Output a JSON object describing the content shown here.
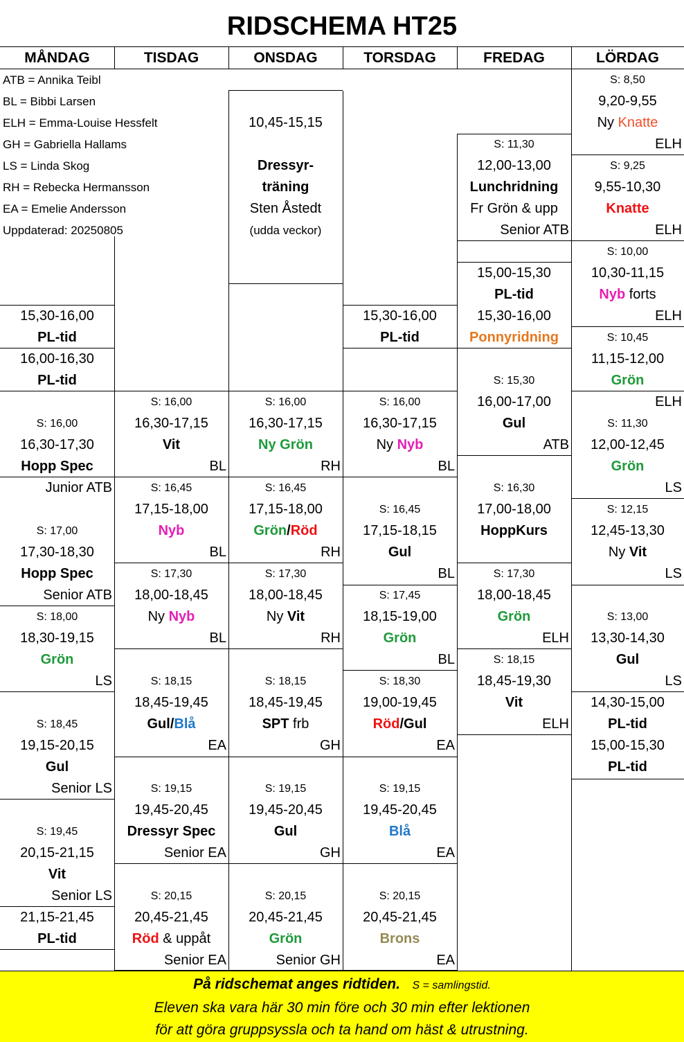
{
  "title": "RIDSCHEMA HT25",
  "days": [
    "MÅNDAG",
    "TISDAG",
    "ONSDAG",
    "TORSDAG",
    "FREDAG",
    "LÖRDAG"
  ],
  "legend": [
    "ATB = Annika Teibl",
    "BL = Bibbi Larsen",
    "ELH = Emma-Louise Hessfelt",
    "GH = Gabriella Hallams",
    "LS = Linda Skog",
    "RH = Rebecka Hermansson",
    "EA = Emelie Andersson",
    "Uppdaterad: 20250805"
  ],
  "colors": {
    "gron": "#1e9a3a",
    "nyb": "#e61eb4",
    "rod": "#ee1111",
    "bla": "#1f78c8",
    "orange": "#e6781e",
    "knatte": "#f0502a",
    "brons": "#948a54",
    "footer_bg": "#ffff00"
  },
  "cells": [
    {
      "col": 5,
      "row": 0,
      "t": "S: 8,50",
      "k": "s"
    },
    {
      "col": 5,
      "row": 1,
      "t": "9,20-9,55"
    },
    {
      "col": 5,
      "row": 2,
      "parts": [
        [
          "Ny ",
          ""
        ],
        [
          "Knatte",
          "knatte"
        ]
      ]
    },
    {
      "col": 5,
      "row": 3,
      "t": "ELH",
      "a": "r"
    },
    {
      "col": 5,
      "row": 4,
      "t": "S: 9,25",
      "k": "s"
    },
    {
      "col": 5,
      "row": 5,
      "t": "9,55-10,30"
    },
    {
      "col": 5,
      "row": 6,
      "parts": [
        [
          "Knatte",
          "rod"
        ]
      ],
      "b": 1
    },
    {
      "col": 5,
      "row": 7,
      "t": "ELH",
      "a": "r"
    },
    {
      "col": 5,
      "row": 8,
      "t": "S: 10,00",
      "k": "s"
    },
    {
      "col": 5,
      "row": 9,
      "t": "10,30-11,15"
    },
    {
      "col": 5,
      "row": 10,
      "parts": [
        [
          "Nyb",
          "nyb"
        ],
        [
          " forts",
          ""
        ]
      ],
      "pb": [
        1,
        0
      ]
    },
    {
      "col": 5,
      "row": 11,
      "t": "ELH",
      "a": "r"
    },
    {
      "col": 5,
      "row": 12,
      "t": "S: 10,45",
      "k": "s"
    },
    {
      "col": 5,
      "row": 13,
      "t": "11,15-12,00"
    },
    {
      "col": 5,
      "row": 14,
      "parts": [
        [
          "Grön",
          "gron"
        ]
      ],
      "b": 1
    },
    {
      "col": 5,
      "row": 15,
      "t": "ELH",
      "a": "r"
    },
    {
      "col": 5,
      "row": 16,
      "t": "S: 11,30",
      "k": "s"
    },
    {
      "col": 5,
      "row": 17,
      "t": "12,00-12,45"
    },
    {
      "col": 5,
      "row": 18,
      "parts": [
        [
          "Grön",
          "gron"
        ]
      ],
      "b": 1
    },
    {
      "col": 5,
      "row": 19,
      "t": "LS",
      "a": "r"
    },
    {
      "col": 5,
      "row": 20,
      "t": "S: 12,15",
      "k": "s"
    },
    {
      "col": 5,
      "row": 21,
      "t": "12,45-13,30"
    },
    {
      "col": 5,
      "row": 22,
      "parts": [
        [
          "Ny ",
          ""
        ],
        [
          "Vit",
          ""
        ]
      ],
      "pb": [
        0,
        1
      ]
    },
    {
      "col": 5,
      "row": 23,
      "t": "LS",
      "a": "r"
    },
    {
      "col": 5,
      "row": 25,
      "t": "S: 13,00",
      "k": "s"
    },
    {
      "col": 5,
      "row": 26,
      "t": "13,30-14,30"
    },
    {
      "col": 5,
      "row": 27,
      "t": "Gul",
      "b": 1
    },
    {
      "col": 5,
      "row": 28,
      "t": "LS",
      "a": "r"
    },
    {
      "col": 5,
      "row": 29,
      "t": "14,30-15,00"
    },
    {
      "col": 5,
      "row": 30,
      "t": "PL-tid",
      "b": 1
    },
    {
      "col": 5,
      "row": 31,
      "t": "15,00-15,30"
    },
    {
      "col": 5,
      "row": 32,
      "t": "PL-tid",
      "b": 1
    },
    {
      "col": 2,
      "row": 2,
      "t": "10,45-15,15"
    },
    {
      "col": 2,
      "row": 4,
      "t": "Dressyr-",
      "b": 1
    },
    {
      "col": 2,
      "row": 5,
      "t": "träning",
      "b": 1
    },
    {
      "col": 2,
      "row": 6,
      "t": "Sten Åstedt"
    },
    {
      "col": 2,
      "row": 7,
      "t": "(udda veckor)",
      "k": "lg"
    },
    {
      "col": 4,
      "row": 3,
      "t": "S: 11,30",
      "k": "s"
    },
    {
      "col": 4,
      "row": 4,
      "t": "12,00-13,00"
    },
    {
      "col": 4,
      "row": 5,
      "t": "Lunchridning",
      "b": 1
    },
    {
      "col": 4,
      "row": 6,
      "t": "Fr Grön & upp"
    },
    {
      "col": 4,
      "row": 7,
      "t": "Senior  ATB",
      "a": "r"
    },
    {
      "col": 4,
      "row": 9,
      "t": "15,00-15,30"
    },
    {
      "col": 4,
      "row": 10,
      "t": "PL-tid",
      "b": 1
    },
    {
      "col": 4,
      "row": 11,
      "t": "15,30-16,00"
    },
    {
      "col": 4,
      "row": 12,
      "parts": [
        [
          "Ponnyridning",
          "orange"
        ]
      ],
      "b": 1
    },
    {
      "col": 4,
      "row": 14,
      "t": "S: 15,30",
      "k": "s"
    },
    {
      "col": 4,
      "row": 15,
      "t": "16,00-17,00"
    },
    {
      "col": 4,
      "row": 16,
      "t": "Gul",
      "b": 1
    },
    {
      "col": 4,
      "row": 17,
      "t": "ATB",
      "a": "r"
    },
    {
      "col": 4,
      "row": 19,
      "t": "S: 16,30",
      "k": "s"
    },
    {
      "col": 4,
      "row": 20,
      "t": "17,00-18,00"
    },
    {
      "col": 4,
      "row": 21,
      "t": "HoppKurs",
      "b": 1
    },
    {
      "col": 4,
      "row": 23,
      "t": "S: 17,30",
      "k": "s"
    },
    {
      "col": 4,
      "row": 24,
      "t": "18,00-18,45"
    },
    {
      "col": 4,
      "row": 25,
      "parts": [
        [
          "Grön",
          "gron"
        ]
      ],
      "b": 1
    },
    {
      "col": 4,
      "row": 26,
      "t": "ELH",
      "a": "r"
    },
    {
      "col": 4,
      "row": 27,
      "t": "S: 18,15",
      "k": "s"
    },
    {
      "col": 4,
      "row": 28,
      "t": "18,45-19,30"
    },
    {
      "col": 4,
      "row": 29,
      "t": "Vit",
      "b": 1
    },
    {
      "col": 4,
      "row": 30,
      "t": "ELH",
      "a": "r"
    },
    {
      "col": 0,
      "row": 11,
      "t": "15,30-16,00"
    },
    {
      "col": 0,
      "row": 12,
      "t": "PL-tid",
      "b": 1
    },
    {
      "col": 0,
      "row": 13,
      "t": "16,00-16,30"
    },
    {
      "col": 0,
      "row": 14,
      "t": "PL-tid",
      "b": 1
    },
    {
      "col": 0,
      "row": 16,
      "t": "S: 16,00",
      "k": "s"
    },
    {
      "col": 0,
      "row": 17,
      "t": "16,30-17,30"
    },
    {
      "col": 0,
      "row": 18,
      "t": "Hopp Spec",
      "b": 1
    },
    {
      "col": 0,
      "row": 19,
      "t": "Junior  ATB",
      "a": "r"
    },
    {
      "col": 0,
      "row": 21,
      "t": "S: 17,00",
      "k": "s"
    },
    {
      "col": 0,
      "row": 22,
      "t": "17,30-18,30"
    },
    {
      "col": 0,
      "row": 23,
      "t": "Hopp Spec",
      "b": 1
    },
    {
      "col": 0,
      "row": 24,
      "t": "Senior  ATB",
      "a": "r"
    },
    {
      "col": 0,
      "row": 25,
      "t": "S: 18,00",
      "k": "s"
    },
    {
      "col": 0,
      "row": 26,
      "t": "18,30-19,15"
    },
    {
      "col": 0,
      "row": 27,
      "parts": [
        [
          "Grön",
          "gron"
        ]
      ],
      "b": 1
    },
    {
      "col": 0,
      "row": 28,
      "t": "LS",
      "a": "r"
    },
    {
      "col": 0,
      "row": 30,
      "t": "S: 18,45",
      "k": "s"
    },
    {
      "col": 0,
      "row": 31,
      "t": "19,15-20,15"
    },
    {
      "col": 0,
      "row": 32,
      "t": "Gul",
      "b": 1
    },
    {
      "col": 0,
      "row": 33,
      "t": "Senior  LS",
      "a": "r"
    },
    {
      "col": 0,
      "row": 35,
      "t": "S: 19,45",
      "k": "s"
    },
    {
      "col": 0,
      "row": 36,
      "t": "20,15-21,15"
    },
    {
      "col": 0,
      "row": 37,
      "t": "Vit",
      "b": 1
    },
    {
      "col": 0,
      "row": 38,
      "t": "Senior  LS",
      "a": "r"
    },
    {
      "col": 0,
      "row": 39,
      "t": "21,15-21,45"
    },
    {
      "col": 0,
      "row": 40,
      "t": "PL-tid",
      "b": 1
    },
    {
      "col": 1,
      "row": 15,
      "t": "S: 16,00",
      "k": "s"
    },
    {
      "col": 1,
      "row": 16,
      "t": "16,30-17,15"
    },
    {
      "col": 1,
      "row": 17,
      "t": "Vit",
      "b": 1
    },
    {
      "col": 1,
      "row": 18,
      "t": "BL",
      "a": "r"
    },
    {
      "col": 1,
      "row": 19,
      "t": "S: 16,45",
      "k": "s"
    },
    {
      "col": 1,
      "row": 20,
      "t": "17,15-18,00"
    },
    {
      "col": 1,
      "row": 21,
      "parts": [
        [
          "Nyb",
          "nyb"
        ]
      ],
      "b": 1
    },
    {
      "col": 1,
      "row": 22,
      "t": "BL",
      "a": "r"
    },
    {
      "col": 1,
      "row": 23,
      "t": "S: 17,30",
      "k": "s"
    },
    {
      "col": 1,
      "row": 24,
      "t": "18,00-18,45"
    },
    {
      "col": 1,
      "row": 25,
      "parts": [
        [
          "Ny ",
          ""
        ],
        [
          "Nyb",
          "nyb"
        ]
      ],
      "pb": [
        0,
        1
      ]
    },
    {
      "col": 1,
      "row": 26,
      "t": "BL",
      "a": "r"
    },
    {
      "col": 1,
      "row": 28,
      "t": "S: 18,15",
      "k": "s"
    },
    {
      "col": 1,
      "row": 29,
      "t": "18,45-19,45"
    },
    {
      "col": 1,
      "row": 30,
      "parts": [
        [
          "Gul/",
          ""
        ],
        [
          "Blå",
          "bla"
        ]
      ],
      "b": 1
    },
    {
      "col": 1,
      "row": 31,
      "t": "EA",
      "a": "r"
    },
    {
      "col": 1,
      "row": 33,
      "t": "S: 19,15",
      "k": "s"
    },
    {
      "col": 1,
      "row": 34,
      "t": "19,45-20,45"
    },
    {
      "col": 1,
      "row": 35,
      "t": "Dressyr Spec",
      "b": 1
    },
    {
      "col": 1,
      "row": 36,
      "t": "Senior  EA",
      "a": "r"
    },
    {
      "col": 1,
      "row": 38,
      "t": "S: 20,15",
      "k": "s"
    },
    {
      "col": 1,
      "row": 39,
      "t": "20,45-21,45"
    },
    {
      "col": 1,
      "row": 40,
      "parts": [
        [
          "Röd",
          "rod"
        ],
        [
          " & uppåt",
          ""
        ]
      ],
      "pb": [
        1,
        0
      ]
    },
    {
      "col": 1,
      "row": 41,
      "t": "Senior  EA",
      "a": "r"
    },
    {
      "col": 2,
      "row": 15,
      "t": "S: 16,00",
      "k": "s"
    },
    {
      "col": 2,
      "row": 16,
      "t": "16,30-17,15"
    },
    {
      "col": 2,
      "row": 17,
      "parts": [
        [
          "Ny Grön",
          "gron"
        ]
      ],
      "b": 1
    },
    {
      "col": 2,
      "row": 18,
      "t": "RH",
      "a": "r"
    },
    {
      "col": 2,
      "row": 19,
      "t": "S: 16,45",
      "k": "s"
    },
    {
      "col": 2,
      "row": 20,
      "t": "17,15-18,00"
    },
    {
      "col": 2,
      "row": 21,
      "parts": [
        [
          "Grön",
          "gron"
        ],
        [
          "/",
          ""
        ],
        [
          "Röd",
          "rod"
        ]
      ],
      "b": 1
    },
    {
      "col": 2,
      "row": 22,
      "t": "RH",
      "a": "r"
    },
    {
      "col": 2,
      "row": 23,
      "t": "S: 17,30",
      "k": "s"
    },
    {
      "col": 2,
      "row": 24,
      "t": "18,00-18,45"
    },
    {
      "col": 2,
      "row": 25,
      "parts": [
        [
          "Ny ",
          ""
        ],
        [
          "Vit",
          ""
        ]
      ],
      "pb": [
        0,
        1
      ]
    },
    {
      "col": 2,
      "row": 26,
      "t": "RH",
      "a": "r"
    },
    {
      "col": 2,
      "row": 28,
      "t": "S: 18,15",
      "k": "s"
    },
    {
      "col": 2,
      "row": 29,
      "t": "18,45-19,45"
    },
    {
      "col": 2,
      "row": 30,
      "parts": [
        [
          "SPT",
          ""
        ],
        [
          " frb",
          ""
        ]
      ],
      "pb": [
        1,
        0
      ]
    },
    {
      "col": 2,
      "row": 31,
      "t": "GH",
      "a": "r"
    },
    {
      "col": 2,
      "row": 33,
      "t": "S: 19,15",
      "k": "s"
    },
    {
      "col": 2,
      "row": 34,
      "t": "19,45-20,45"
    },
    {
      "col": 2,
      "row": 35,
      "t": "Gul",
      "b": 1
    },
    {
      "col": 2,
      "row": 36,
      "t": "GH",
      "a": "r"
    },
    {
      "col": 2,
      "row": 38,
      "t": "S: 20,15",
      "k": "s"
    },
    {
      "col": 2,
      "row": 39,
      "t": "20,45-21,45"
    },
    {
      "col": 2,
      "row": 40,
      "parts": [
        [
          "Grön",
          "gron"
        ]
      ],
      "b": 1
    },
    {
      "col": 2,
      "row": 41,
      "t": "Senior  GH",
      "a": "r"
    },
    {
      "col": 3,
      "row": 11,
      "t": "15,30-16,00"
    },
    {
      "col": 3,
      "row": 12,
      "t": "PL-tid",
      "b": 1
    },
    {
      "col": 3,
      "row": 15,
      "t": "S: 16,00",
      "k": "s"
    },
    {
      "col": 3,
      "row": 16,
      "t": "16,30-17,15"
    },
    {
      "col": 3,
      "row": 17,
      "parts": [
        [
          "Ny ",
          ""
        ],
        [
          "Nyb",
          "nyb"
        ]
      ],
      "pb": [
        0,
        1
      ]
    },
    {
      "col": 3,
      "row": 18,
      "t": "BL",
      "a": "r"
    },
    {
      "col": 3,
      "row": 20,
      "t": "S: 16,45",
      "k": "s"
    },
    {
      "col": 3,
      "row": 21,
      "t": "17,15-18,15"
    },
    {
      "col": 3,
      "row": 22,
      "t": "Gul",
      "b": 1
    },
    {
      "col": 3,
      "row": 23,
      "t": "BL",
      "a": "r"
    },
    {
      "col": 3,
      "row": 24,
      "t": "S: 17,45",
      "k": "s"
    },
    {
      "col": 3,
      "row": 25,
      "t": "18,15-19,00"
    },
    {
      "col": 3,
      "row": 26,
      "parts": [
        [
          "Grön",
          "gron"
        ]
      ],
      "b": 1
    },
    {
      "col": 3,
      "row": 27,
      "t": "BL",
      "a": "r"
    },
    {
      "col": 3,
      "row": 28,
      "t": "S: 18,30",
      "k": "s"
    },
    {
      "col": 3,
      "row": 29,
      "t": "19,00-19,45"
    },
    {
      "col": 3,
      "row": 30,
      "parts": [
        [
          "Röd",
          "rod"
        ],
        [
          "/Gul",
          ""
        ]
      ],
      "b": 1
    },
    {
      "col": 3,
      "row": 31,
      "t": "EA",
      "a": "r"
    },
    {
      "col": 3,
      "row": 33,
      "t": "S: 19,15",
      "k": "s"
    },
    {
      "col": 3,
      "row": 34,
      "t": "19,45-20,45"
    },
    {
      "col": 3,
      "row": 35,
      "parts": [
        [
          "Blå",
          "bla"
        ]
      ],
      "b": 1
    },
    {
      "col": 3,
      "row": 36,
      "t": "EA",
      "a": "r"
    },
    {
      "col": 3,
      "row": 38,
      "t": "S: 20,15",
      "k": "s"
    },
    {
      "col": 3,
      "row": 39,
      "t": "20,45-21,45"
    },
    {
      "col": 3,
      "row": 40,
      "parts": [
        [
          "Brons",
          "brons"
        ]
      ],
      "b": 1
    },
    {
      "col": 3,
      "row": 41,
      "t": "EA",
      "a": "r"
    }
  ],
  "footer": {
    "line1_bold": "På ridschemat anges ridtiden.",
    "line1_small": "S = samlingstid.",
    "line2": "Eleven ska vara här 30 min före och 30 min efter lektionen",
    "line3": "för att göra gruppsyssla och ta hand om häst & utrustning."
  }
}
